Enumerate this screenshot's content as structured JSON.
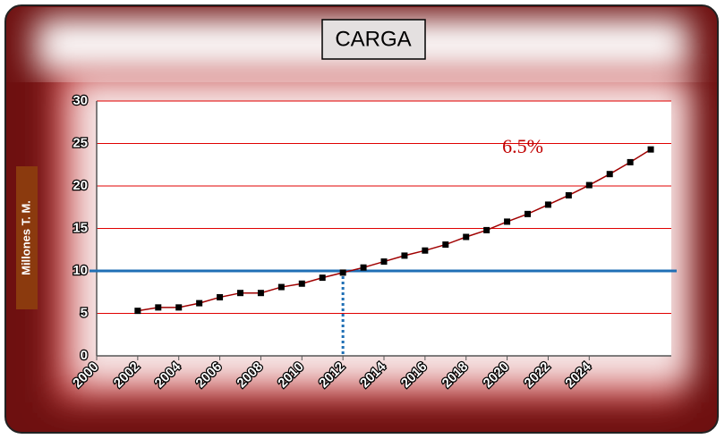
{
  "chart_data": {
    "type": "line",
    "title": "CARGA",
    "ylabel": "Millones T. M.",
    "x": [
      2002,
      2003,
      2004,
      2005,
      2006,
      2007,
      2008,
      2009,
      2010,
      2011,
      2012,
      2013,
      2014,
      2015,
      2016,
      2017,
      2018,
      2019,
      2020,
      2021,
      2022,
      2023,
      2024,
      2025,
      2026,
      2027
    ],
    "series": [
      {
        "name": "Carga",
        "color": "#a00000",
        "values": [
          5.3,
          5.7,
          5.7,
          6.2,
          6.9,
          7.4,
          7.4,
          8.1,
          8.5,
          9.2,
          9.8,
          10.4,
          11.1,
          11.8,
          12.4,
          13.1,
          14.0,
          14.8,
          15.8,
          16.7,
          17.8,
          18.9,
          20.1,
          21.4,
          22.8,
          24.3
        ]
      }
    ],
    "xlim": [
      2000,
      2028
    ],
    "xticks": [
      2000,
      2002,
      2004,
      2006,
      2008,
      2010,
      2012,
      2014,
      2016,
      2018,
      2020,
      2022,
      2024
    ],
    "ylim": [
      0,
      30
    ],
    "yticks": [
      0,
      5,
      10,
      15,
      20,
      25,
      30
    ],
    "grid": true,
    "grid_color": "#e00000",
    "marker_color": "#000000",
    "reference_y": 10,
    "reference_x": 2012,
    "reference_color": "#1f6fb5",
    "annotation": "6.5%"
  }
}
